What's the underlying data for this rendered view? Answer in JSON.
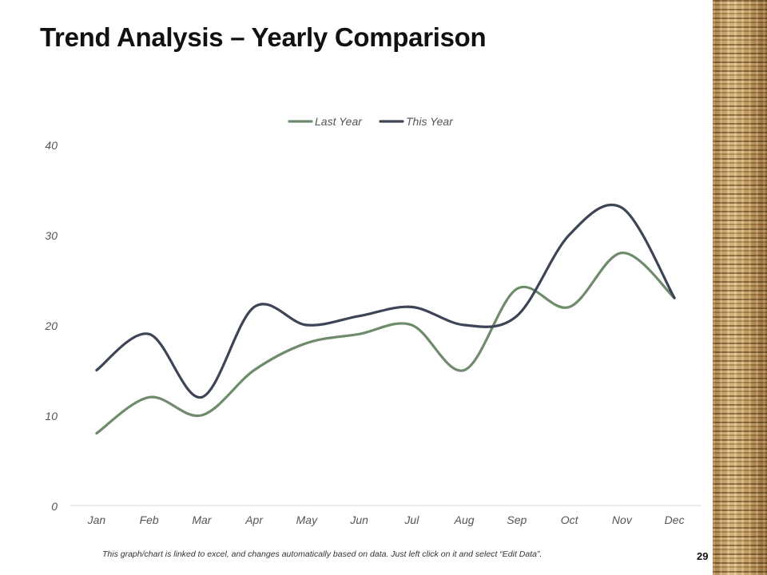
{
  "slide": {
    "title": "Trend Analysis – Yearly Comparison",
    "footnote": "This graph/chart is linked to excel, and changes automatically  based on data.  Just left click on it and select “Edit Data”.",
    "page_number": "29"
  },
  "colors": {
    "last_year": "#6e8b6b",
    "this_year": "#3d4455",
    "axis": "#d9d9d9",
    "tick_text": "#555555"
  },
  "chart_data": {
    "type": "line",
    "title": "",
    "xlabel": "",
    "ylabel": "",
    "categories": [
      "Jan",
      "Feb",
      "Mar",
      "Apr",
      "May",
      "Jun",
      "Jul",
      "Aug",
      "Sep",
      "Oct",
      "Nov",
      "Dec"
    ],
    "yticks": [
      0,
      10,
      20,
      30,
      40
    ],
    "ylim": [
      0,
      40
    ],
    "grid": false,
    "smooth": true,
    "legend_position": "top",
    "series": [
      {
        "name": "Last Year",
        "color": "#6e8b6b",
        "values": [
          8,
          12,
          10,
          15,
          18,
          19,
          20,
          15,
          24,
          22,
          28,
          23
        ]
      },
      {
        "name": "This Year",
        "color": "#3d4455",
        "values": [
          15,
          19,
          12,
          22,
          20,
          21,
          22,
          20,
          21,
          30,
          33,
          23
        ]
      }
    ]
  }
}
